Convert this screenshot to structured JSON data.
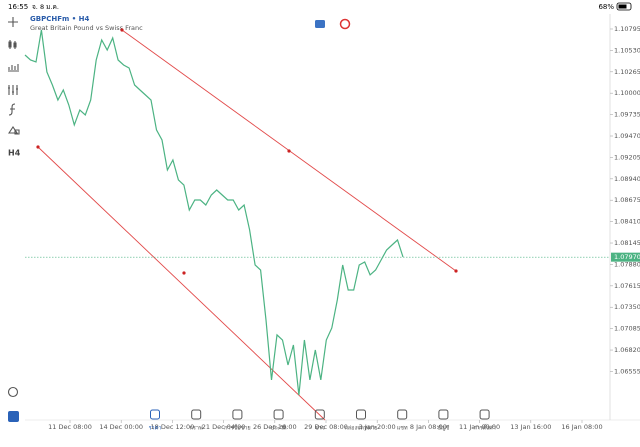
{
  "status_bar": {
    "time": "16:55",
    "date": "จ. 8 ม.ค.",
    "battery": "68%"
  },
  "header": {
    "title": "GBPCHFm • H4",
    "subtitle": "Great Britain Pound vs Swiss Franc"
  },
  "chart_data": {
    "type": "line",
    "series": [
      {
        "color": "#4cb383",
        "values": [
          1.10473,
          1.10411,
          1.10386,
          1.10783,
          1.10263,
          1.10102,
          1.09916,
          1.1004,
          1.09854,
          1.09607,
          1.09792,
          1.0973,
          1.09916,
          1.10411,
          1.10659,
          1.10535,
          1.10684,
          1.10411,
          1.10349,
          1.10312,
          1.10102,
          1.1004,
          1.09978,
          1.09916,
          1.09545,
          1.09421,
          1.09049,
          1.09173,
          1.08926,
          1.08864,
          1.08554,
          1.08678,
          1.08678,
          1.08616,
          1.0874,
          1.08802,
          1.0874,
          1.08678,
          1.08678,
          1.08554,
          1.08616,
          1.08307,
          1.07873,
          1.07811,
          1.07192,
          1.0645,
          1.07007,
          1.06945,
          1.06635,
          1.06883,
          1.06264,
          1.06945,
          1.0645,
          1.06821,
          1.0645,
          1.06945,
          1.07093,
          1.0744,
          1.07873,
          1.07564,
          1.07564,
          1.07873,
          1.0791,
          1.0775,
          1.07811,
          1.07935,
          1.08059,
          1.08121,
          1.08183,
          1.07972
        ]
      }
    ],
    "ylim": [
      1.05954,
      1.10931
    ],
    "yticks": [
      {
        "value": 1.10795,
        "label": "1.10795"
      },
      {
        "value": 1.1053,
        "label": "1.10530"
      },
      {
        "value": 1.10265,
        "label": "1.10265"
      },
      {
        "value": 1.1,
        "label": "1.10000"
      },
      {
        "value": 1.09735,
        "label": "1.09735"
      },
      {
        "value": 1.0947,
        "label": "1.09470"
      },
      {
        "value": 1.09205,
        "label": "1.09205"
      },
      {
        "value": 1.0894,
        "label": "1.08940"
      },
      {
        "value": 1.08675,
        "label": "1.08675"
      },
      {
        "value": 1.0841,
        "label": "1.08410"
      },
      {
        "value": 1.08145,
        "label": "1.08145"
      },
      {
        "value": 1.0788,
        "label": "1.07880"
      },
      {
        "value": 1.07615,
        "label": "1.07615"
      },
      {
        "value": 1.0735,
        "label": "1.07350"
      },
      {
        "value": 1.07085,
        "label": "1.07085"
      },
      {
        "value": 1.0682,
        "label": "1.06820"
      },
      {
        "value": 1.06555,
        "label": "1.06555"
      }
    ],
    "xticks": [
      "11 Dec 08:00",
      "14 Dec 00:00",
      "18 Dec 12:00",
      "21 Dec 04:00",
      "26 Dec 16:00",
      "29 Dec 08:00",
      "3 Jan 20:00",
      "8 Jan 08:00",
      "11 Jan 00:00",
      "13 Jan 16:00",
      "16 Jan 08:00"
    ],
    "current_price": {
      "value": 1.0797,
      "label": "1.07970"
    }
  },
  "nav": {
    "items": [
      "ราคา",
      "กราฟ",
      "การซื้อขาย",
      "ประวัติ",
      "ข่าว",
      "กล่องจดหมาย",
      "แชท",
      "บัญชี",
      "การตั้งค่า"
    ]
  }
}
